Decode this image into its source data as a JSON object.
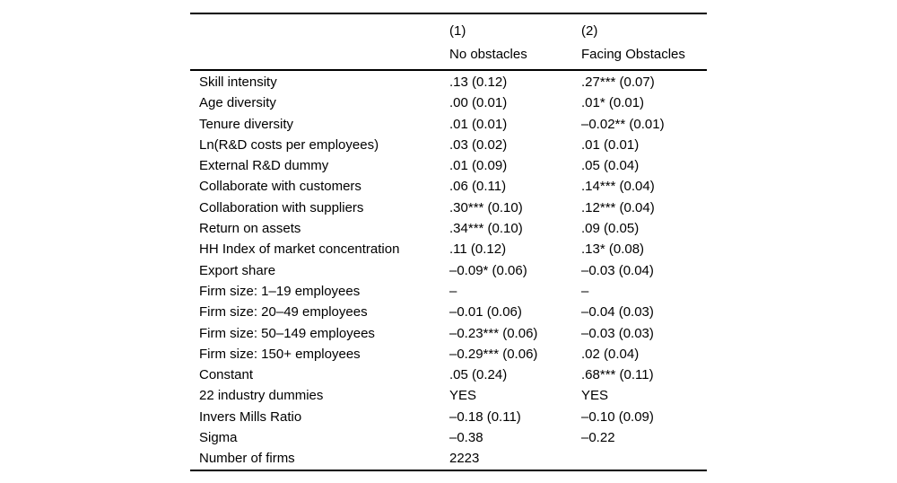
{
  "colors": {
    "background": "#ffffff",
    "text": "#000000",
    "rule": "#000000"
  },
  "table": {
    "columns": [
      {
        "number": "(1)",
        "title": "No obstacles"
      },
      {
        "number": "(2)",
        "title": "Facing Obstacles"
      }
    ],
    "rows": [
      {
        "label": "Skill intensity",
        "col1": ".13 (0.12)",
        "col2": ".27*** (0.07)"
      },
      {
        "label": "Age diversity",
        "col1": ".00 (0.01)",
        "col2": ".01* (0.01)"
      },
      {
        "label": "Tenure diversity",
        "col1": ".01 (0.01)",
        "col2": "–0.02** (0.01)"
      },
      {
        "label": "Ln(R&D costs per employees)",
        "col1": ".03 (0.02)",
        "col2": ".01 (0.01)"
      },
      {
        "label": "External R&D dummy",
        "col1": ".01 (0.09)",
        "col2": ".05 (0.04)"
      },
      {
        "label": "Collaborate with customers",
        "col1": ".06 (0.11)",
        "col2": ".14*** (0.04)"
      },
      {
        "label": "Collaboration with suppliers",
        "col1": ".30*** (0.10)",
        "col2": ".12*** (0.04)"
      },
      {
        "label": "Return on assets",
        "col1": ".34*** (0.10)",
        "col2": ".09 (0.05)"
      },
      {
        "label": "HH Index of market concentration",
        "col1": ".11 (0.12)",
        "col2": ".13* (0.08)"
      },
      {
        "label": "Export share",
        "col1": "–0.09* (0.06)",
        "col2": "–0.03 (0.04)"
      },
      {
        "label": "Firm size: 1–19 employees",
        "col1": "–",
        "col2": "–"
      },
      {
        "label": "Firm size: 20–49 employees",
        "col1": "–0.01 (0.06)",
        "col2": "–0.04 (0.03)"
      },
      {
        "label": "Firm size: 50–149 employees",
        "col1": "–0.23*** (0.06)",
        "col2": "–0.03 (0.03)"
      },
      {
        "label": "Firm size: 150+ employees",
        "col1": "–0.29*** (0.06)",
        "col2": ".02 (0.04)"
      },
      {
        "label": "Constant",
        "col1": ".05 (0.24)",
        "col2": ".68*** (0.11)"
      },
      {
        "label": "22 industry dummies",
        "col1": "YES",
        "col2": "YES"
      },
      {
        "label": "Invers Mills Ratio",
        "col1": "–0.18 (0.11)",
        "col2": "–0.10 (0.09)"
      },
      {
        "label": "Sigma",
        "col1": "–0.38",
        "col2": "–0.22"
      },
      {
        "label": "Number of firms",
        "col1": "2223",
        "col2": ""
      }
    ]
  }
}
